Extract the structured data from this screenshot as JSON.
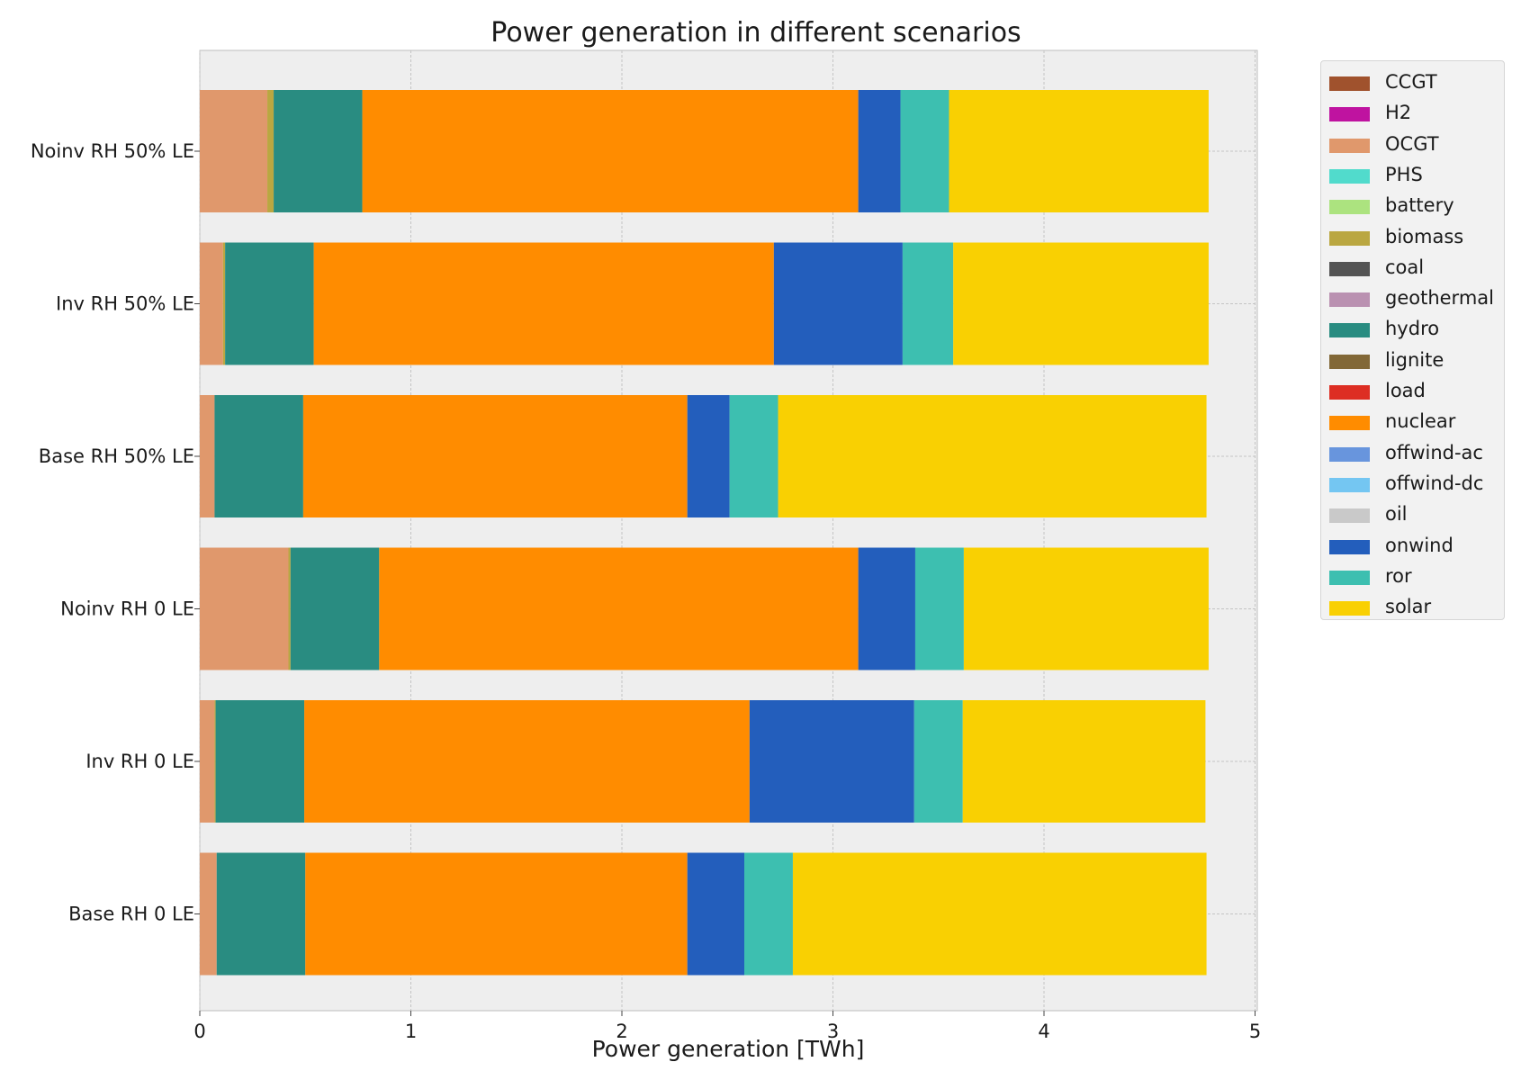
{
  "chart_data": {
    "type": "bar",
    "orientation": "horizontal",
    "stacked": true,
    "title": "Power generation in different scenarios",
    "xlabel": "Power generation [TWh]",
    "ylabel": "",
    "xlim": [
      0,
      5
    ],
    "xticks": [
      "0",
      "1",
      "2",
      "3",
      "4",
      "5"
    ],
    "grid": true,
    "legend_position": "outside top-right",
    "categories": [
      "Noinv RH 50% LE",
      "Inv RH 50% LE",
      "Base RH 50% LE",
      "Noinv RH 0 LE",
      "Inv RH 0 LE",
      "Base RH 0 LE"
    ],
    "legend": [
      {
        "name": "CCGT",
        "color": "#a0522d"
      },
      {
        "name": "H2",
        "color": "#bf13a0"
      },
      {
        "name": "OCGT",
        "color": "#e0986c"
      },
      {
        "name": "PHS",
        "color": "#51dbcc"
      },
      {
        "name": "battery",
        "color": "#ace37f"
      },
      {
        "name": "biomass",
        "color": "#baa741"
      },
      {
        "name": "coal",
        "color": "#545454"
      },
      {
        "name": "geothermal",
        "color": "#ba91b1"
      },
      {
        "name": "hydro",
        "color": "#298c81"
      },
      {
        "name": "lignite",
        "color": "#826837"
      },
      {
        "name": "load",
        "color": "#dd2e23"
      },
      {
        "name": "nuclear",
        "color": "#ff8c00"
      },
      {
        "name": "offwind-ac",
        "color": "#6895dd"
      },
      {
        "name": "offwind-dc",
        "color": "#74c6f2"
      },
      {
        "name": "oil",
        "color": "#c9c9c9"
      },
      {
        "name": "onwind",
        "color": "#235ebc"
      },
      {
        "name": "ror",
        "color": "#3dbfb0"
      },
      {
        "name": "solar",
        "color": "#f9d002"
      }
    ],
    "series": [
      {
        "name": "OCGT",
        "values": [
          0.32,
          0.11,
          0.07,
          0.42,
          0.07,
          0.08
        ]
      },
      {
        "name": "biomass",
        "values": [
          0.03,
          0.01,
          0.0,
          0.01,
          0.005,
          0.0
        ]
      },
      {
        "name": "hydro",
        "values": [
          0.42,
          0.42,
          0.42,
          0.42,
          0.42,
          0.42
        ]
      },
      {
        "name": "nuclear",
        "values": [
          2.35,
          2.18,
          1.82,
          2.27,
          2.11,
          1.81
        ]
      },
      {
        "name": "onwind",
        "values": [
          0.2,
          0.61,
          0.2,
          0.27,
          0.78,
          0.27
        ]
      },
      {
        "name": "ror",
        "values": [
          0.23,
          0.24,
          0.23,
          0.23,
          0.23,
          0.23
        ]
      },
      {
        "name": "solar",
        "values": [
          1.23,
          1.21,
          2.03,
          1.16,
          1.15,
          1.96
        ]
      }
    ]
  }
}
